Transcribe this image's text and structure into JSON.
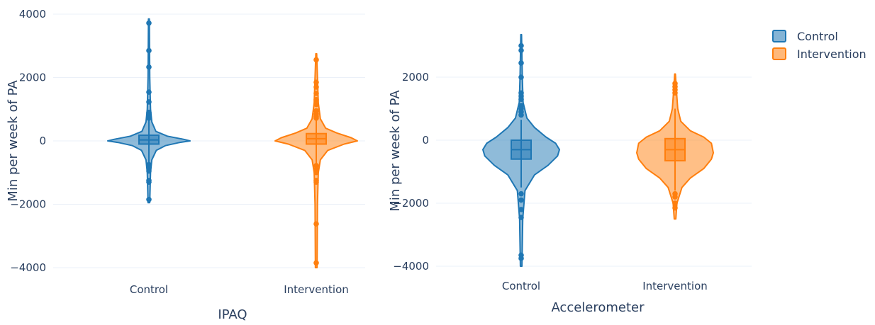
{
  "chart_data": [
    {
      "type": "violin",
      "xlabel": "IPAQ",
      "ylabel": "Min per week of PA",
      "ylim": [
        -4000,
        4000
      ],
      "yticks": [
        4000,
        2000,
        0,
        -2000,
        -4000
      ],
      "ytick_labels": [
        "4000",
        "2000",
        "0",
        "−2000",
        "−4000"
      ],
      "categories": [
        "Control",
        "Intervention"
      ],
      "series": [
        {
          "name": "Control",
          "box": {
            "q1": -100,
            "median": 30,
            "q3": 180
          },
          "whisker": [
            -800,
            700
          ],
          "range": [
            -1950,
            3850
          ],
          "outliers": [
            3720,
            2850,
            2330,
            1540,
            1230,
            900,
            850,
            780,
            720,
            -750,
            -820,
            -950,
            -1250,
            -1300,
            -1850
          ],
          "density": [
            [
              -1950,
              0.02
            ],
            [
              -1000,
              0.04
            ],
            [
              -600,
              0.07
            ],
            [
              -300,
              0.18
            ],
            [
              -150,
              0.4
            ],
            [
              -50,
              0.75
            ],
            [
              0,
              1.0
            ],
            [
              50,
              0.85
            ],
            [
              150,
              0.45
            ],
            [
              300,
              0.17
            ],
            [
              600,
              0.07
            ],
            [
              1000,
              0.04
            ],
            [
              2000,
              0.02
            ],
            [
              3850,
              0.01
            ]
          ]
        },
        {
          "name": "Intervention",
          "box": {
            "q1": -100,
            "median": 70,
            "q3": 230
          },
          "whisker": [
            -800,
            800
          ],
          "range": [
            -4000,
            2750
          ],
          "outliers": [
            2560,
            1850,
            1700,
            1500,
            1300,
            1150,
            950,
            850,
            780,
            720,
            -780,
            -900,
            -1000,
            -1250,
            -1300,
            -2620,
            -3850
          ],
          "density": [
            [
              -4000,
              0.02
            ],
            [
              -2000,
              0.03
            ],
            [
              -1000,
              0.05
            ],
            [
              -600,
              0.1
            ],
            [
              -300,
              0.28
            ],
            [
              -100,
              0.68
            ],
            [
              0,
              1.0
            ],
            [
              100,
              0.85
            ],
            [
              250,
              0.5
            ],
            [
              400,
              0.23
            ],
            [
              700,
              0.1
            ],
            [
              1200,
              0.05
            ],
            [
              2000,
              0.03
            ],
            [
              2750,
              0.01
            ]
          ]
        }
      ]
    },
    {
      "type": "violin",
      "xlabel": "Accelerometer",
      "ylabel": "Min per week of PA",
      "ylim": [
        -4200,
        3500
      ],
      "yticks": [
        2000,
        0,
        -2000,
        -4000
      ],
      "ytick_labels": [
        "2000",
        "0",
        "−2000",
        "−4000"
      ],
      "categories": [
        "Control",
        "Intervention"
      ],
      "series": [
        {
          "name": "Control",
          "box": {
            "q1": -600,
            "median": -300,
            "q3": 0
          },
          "whisker": [
            -1500,
            650
          ],
          "range": [
            -4000,
            3350
          ],
          "outliers": [
            3000,
            2850,
            2450,
            2000,
            1500,
            1400,
            1300,
            1100,
            1000,
            900,
            800,
            -1700,
            -1900,
            -2200,
            -2450,
            -3650,
            -3750
          ],
          "density": [
            [
              -4000,
              0.02
            ],
            [
              -2500,
              0.04
            ],
            [
              -1600,
              0.1
            ],
            [
              -1100,
              0.35
            ],
            [
              -800,
              0.7
            ],
            [
              -500,
              0.95
            ],
            [
              -300,
              1.0
            ],
            [
              -100,
              0.9
            ],
            [
              100,
              0.65
            ],
            [
              400,
              0.35
            ],
            [
              700,
              0.15
            ],
            [
              1200,
              0.05
            ],
            [
              2000,
              0.03
            ],
            [
              3350,
              0.01
            ]
          ]
        },
        {
          "name": "Intervention",
          "box": {
            "q1": -650,
            "median": -300,
            "q3": 50
          },
          "whisker": [
            -1600,
            1000
          ],
          "range": [
            -2500,
            2100
          ],
          "outliers": [
            1800,
            1700,
            1600,
            1500,
            -1700,
            -1800,
            -2000,
            -2150
          ],
          "density": [
            [
              -2500,
              0.02
            ],
            [
              -2000,
              0.05
            ],
            [
              -1500,
              0.18
            ],
            [
              -1200,
              0.4
            ],
            [
              -900,
              0.75
            ],
            [
              -600,
              0.95
            ],
            [
              -400,
              1.0
            ],
            [
              -100,
              0.95
            ],
            [
              100,
              0.75
            ],
            [
              300,
              0.4
            ],
            [
              600,
              0.15
            ],
            [
              1000,
              0.07
            ],
            [
              1500,
              0.04
            ],
            [
              2100,
              0.01
            ]
          ]
        }
      ]
    }
  ],
  "legend": {
    "items": [
      {
        "label": "Control",
        "color": "#1f77b4"
      },
      {
        "label": "Intervention",
        "color": "#ff7f0e"
      }
    ]
  },
  "colors": {
    "control": "#1f77b4",
    "intervention": "#ff7f0e"
  }
}
